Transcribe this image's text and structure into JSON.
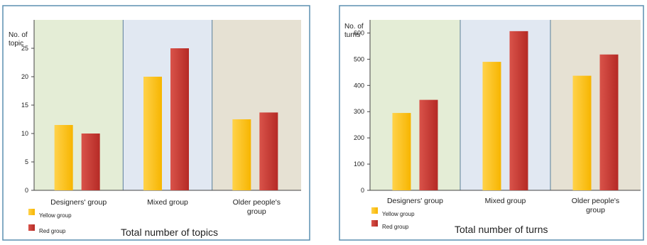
{
  "colors": {
    "frame": "#5b8fb0",
    "yellow": "#f7b500",
    "yellow_light": "#ffd24a",
    "red": "#b52a25",
    "red_light": "#d9534a",
    "bg_designers": "#e4edd6",
    "bg_mixed": "#e1e8f2",
    "bg_older": "#e6e1d3",
    "divider": "#5b7f9a"
  },
  "chart_data": [
    {
      "type": "bar",
      "title": "Total number of topics",
      "ylabel": "No. of topic",
      "ylim": [
        0,
        30
      ],
      "yticks": [
        0,
        5,
        10,
        15,
        20,
        25
      ],
      "categories": [
        "Designers' group",
        "Mixed group",
        "Older people's group"
      ],
      "series": [
        {
          "name": "Yellow group",
          "color": "yellow",
          "values": [
            11.5,
            20,
            12.5
          ]
        },
        {
          "name": "Red group",
          "color": "red",
          "values": [
            10,
            25,
            13.7
          ]
        }
      ],
      "legend_position": "bottom-left",
      "grid": false
    },
    {
      "type": "bar",
      "title": "Total number of turns",
      "ylabel": "No. of turns",
      "ylim": [
        0,
        650
      ],
      "yticks": [
        0,
        100,
        200,
        300,
        400,
        500,
        600
      ],
      "categories": [
        "Designers' group",
        "Mixed group",
        "Older people's group"
      ],
      "series": [
        {
          "name": "Yellow group",
          "color": "yellow",
          "values": [
            295,
            490,
            437
          ]
        },
        {
          "name": "Red group",
          "color": "red",
          "values": [
            345,
            607,
            518
          ]
        }
      ],
      "legend_position": "bottom-left",
      "grid": false
    }
  ]
}
